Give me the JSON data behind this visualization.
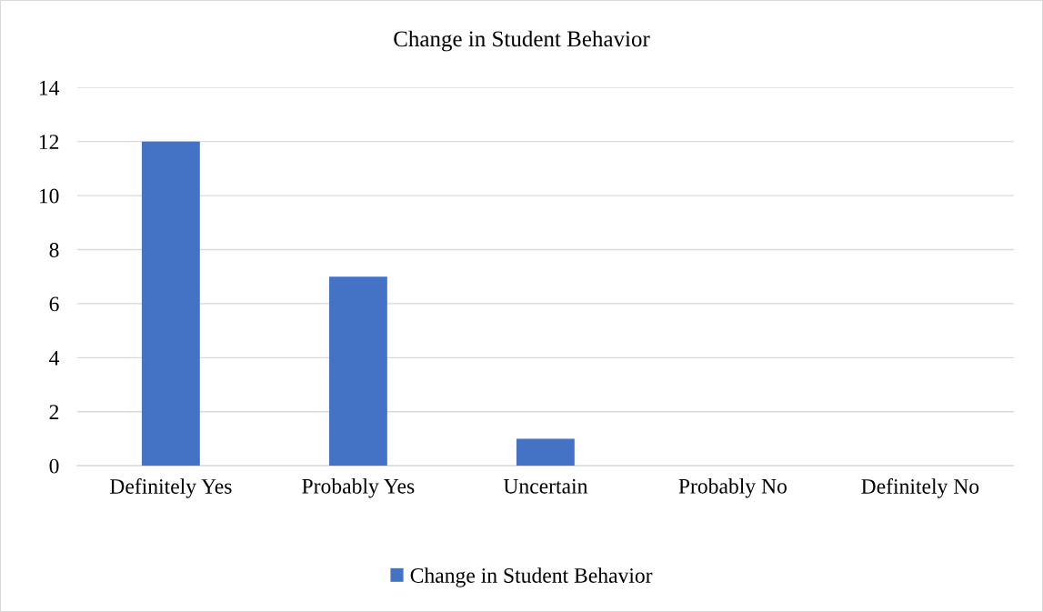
{
  "chart_data": {
    "type": "bar",
    "title": "Change in Student Behavior",
    "categories": [
      "Definitely Yes",
      "Probably Yes",
      "Uncertain",
      "Probably No",
      "Definitely No"
    ],
    "series": [
      {
        "name": "Change in Student Behavior",
        "color": "#4472c4",
        "values": [
          12,
          7,
          1,
          0,
          0
        ]
      }
    ],
    "ylim": [
      0,
      14
    ],
    "yticks": [
      0,
      2,
      4,
      6,
      8,
      10,
      12,
      14
    ],
    "grid": "y",
    "legend": "bottom"
  }
}
